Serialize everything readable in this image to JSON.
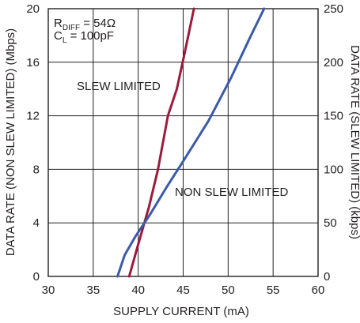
{
  "chart_data": {
    "type": "line",
    "xlabel": "SUPPLY CURRENT (mA)",
    "ylabel_left": "DATA RATE (NON SLEW LIMITED) (Mbps)",
    "ylabel_right": "DATA RATE (SLEW LIMITED) (kbps)",
    "xlim": [
      30,
      60
    ],
    "ylim_left": [
      0,
      20
    ],
    "ylim_right": [
      0,
      250
    ],
    "x_ticks": [
      "30",
      "35",
      "40",
      "45",
      "50",
      "55",
      "60"
    ],
    "y_left_ticks": [
      "0",
      "4",
      "8",
      "12",
      "16",
      "20"
    ],
    "y_right_ticks": [
      "0",
      "50",
      "100",
      "150",
      "200",
      "250"
    ],
    "grid": true,
    "legend": "none",
    "annotations": {
      "conditions": [
        {
          "main": "R",
          "sub": "DIFF",
          "rest": " = 54Ω"
        },
        {
          "main": "C",
          "sub": "L",
          "rest": " = 100pF"
        }
      ],
      "slew_label": "SLEW LIMITED",
      "non_slew_label": "NON SLEW LIMITED"
    },
    "series": [
      {
        "name": "SLEW LIMITED",
        "axis": "right",
        "color": "#9b1b3d",
        "x": [
          39.0,
          40.0,
          41.2,
          42.2,
          43.3,
          44.3,
          45.2,
          46.2
        ],
        "y": [
          0,
          30,
          65,
          100,
          150,
          175,
          210,
          250
        ]
      },
      {
        "name": "NON SLEW LIMITED",
        "axis": "left",
        "color": "#3b5ba8",
        "x": [
          37.7,
          38.5,
          39.7,
          41.3,
          43.1,
          45.0,
          47.8,
          50.3,
          52.4,
          54.0
        ],
        "y": [
          0,
          1.6,
          3.0,
          4.6,
          6.6,
          8.6,
          11.6,
          14.8,
          17.8,
          20.0
        ]
      }
    ]
  }
}
